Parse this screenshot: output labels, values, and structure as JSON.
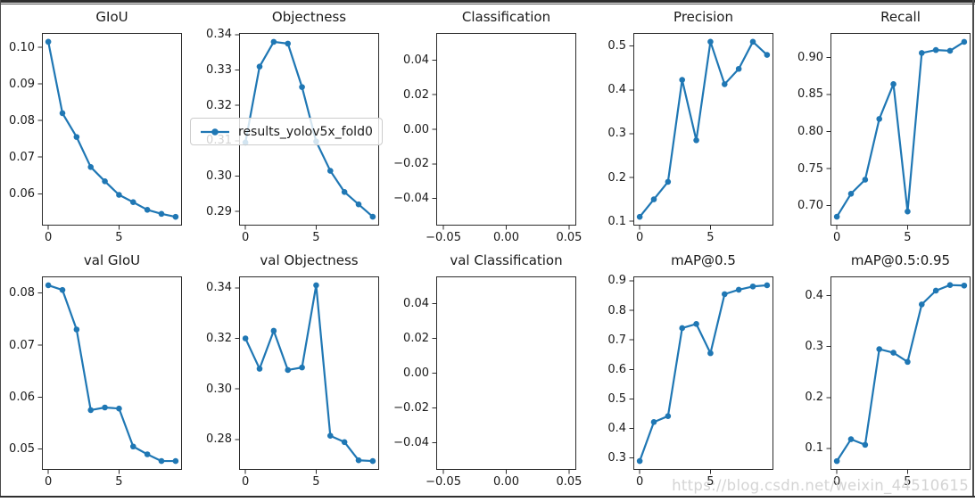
{
  "figure": {
    "background": "#ffffff",
    "rows": 2,
    "cols": 5
  },
  "style": {
    "line_color": "#1f77b4",
    "spine_color": "#2b2b2b",
    "tick_color": "#2b2b2b",
    "text_color": "#1a1a1a",
    "frame_color": "#2f2f2f"
  },
  "legend": {
    "label": "results_yolov5x_fold0",
    "line_color": "#1f77b4"
  },
  "watermark": {
    "text": "https://blog.csdn.net/weixin_44510615",
    "color": "#d4d4d4"
  },
  "chart_data": [
    {
      "type": "line",
      "title": "GIoU",
      "x": [
        0,
        1,
        2,
        3,
        4,
        5,
        6,
        7,
        8,
        9
      ],
      "values": [
        0.1015,
        0.082,
        0.0755,
        0.0673,
        0.0634,
        0.0597,
        0.0577,
        0.0556,
        0.0545,
        0.0537
      ],
      "xlim": [
        -0.45,
        9.45
      ],
      "ylim": [
        0.0513,
        0.1039
      ],
      "yticks": [
        0.06,
        0.07,
        0.08,
        0.09,
        0.1
      ],
      "ytick_labels": [
        "0.06",
        "0.07",
        "0.08",
        "0.09",
        "0.10"
      ],
      "xticks": [
        0,
        5
      ],
      "xtick_labels": [
        "0",
        "5"
      ],
      "grid": false,
      "legend_position": "overlapping-left-center"
    },
    {
      "type": "line",
      "title": "Objectness",
      "x": [
        0,
        1,
        2,
        3,
        4,
        5,
        6,
        7,
        8,
        9
      ],
      "values": [
        0.3095,
        0.331,
        0.338,
        0.3375,
        0.3252,
        0.3098,
        0.3015,
        0.2955,
        0.292,
        0.2885
      ],
      "xlim": [
        -0.45,
        9.45
      ],
      "ylim": [
        0.286,
        0.3405
      ],
      "yticks": [
        0.29,
        0.3,
        0.31,
        0.32,
        0.33,
        0.34
      ],
      "ytick_labels": [
        "0.29",
        "0.30",
        "0.31",
        "0.32",
        "0.33",
        "0.34"
      ],
      "xticks": [
        0,
        5
      ],
      "xtick_labels": [
        "0",
        "5"
      ],
      "grid": false
    },
    {
      "type": "line",
      "title": "Classification",
      "x": [],
      "values": [],
      "xlim": [
        -0.0557,
        0.0557
      ],
      "ylim": [
        -0.0557,
        0.0557
      ],
      "yticks": [
        0.04,
        0.02,
        0.0,
        -0.02,
        -0.04
      ],
      "ytick_labels": [
        "0.04",
        "0.02",
        "0.00",
        "−0.02",
        "−0.04"
      ],
      "xticks": [
        -0.05,
        0.0,
        0.05
      ],
      "xtick_labels": [
        "−0.05",
        "0.00",
        "0.05"
      ],
      "grid": false
    },
    {
      "type": "line",
      "title": "Precision",
      "x": [
        0,
        1,
        2,
        3,
        4,
        5,
        6,
        7,
        8,
        9
      ],
      "values": [
        0.11,
        0.15,
        0.19,
        0.423,
        0.285,
        0.51,
        0.413,
        0.448,
        0.51,
        0.48
      ],
      "xlim": [
        -0.45,
        9.45
      ],
      "ylim": [
        0.09,
        0.53
      ],
      "yticks": [
        0.1,
        0.2,
        0.3,
        0.4,
        0.5
      ],
      "ytick_labels": [
        "0.1",
        "0.2",
        "0.3",
        "0.4",
        "0.5"
      ],
      "xticks": [
        0,
        5
      ],
      "xtick_labels": [
        "0",
        "5"
      ],
      "grid": false
    },
    {
      "type": "line",
      "title": "Recall",
      "x": [
        0,
        1,
        2,
        3,
        4,
        5,
        6,
        7,
        8,
        9
      ],
      "values": [
        0.685,
        0.716,
        0.735,
        0.817,
        0.864,
        0.692,
        0.906,
        0.91,
        0.909,
        0.921
      ],
      "xlim": [
        -0.45,
        9.45
      ],
      "ylim": [
        0.673,
        0.933
      ],
      "yticks": [
        0.7,
        0.75,
        0.8,
        0.85,
        0.9
      ],
      "ytick_labels": [
        "0.70",
        "0.75",
        "0.80",
        "0.85",
        "0.90"
      ],
      "xticks": [
        0,
        5
      ],
      "xtick_labels": [
        "0",
        "5"
      ],
      "grid": false
    },
    {
      "type": "line",
      "title": "val GIoU",
      "x": [
        0,
        1,
        2,
        3,
        4,
        5,
        6,
        7,
        8,
        9
      ],
      "values": [
        0.0815,
        0.0806,
        0.073,
        0.0575,
        0.058,
        0.0578,
        0.0505,
        0.049,
        0.0477,
        0.0477
      ],
      "xlim": [
        -0.45,
        9.45
      ],
      "ylim": [
        0.046,
        0.0832
      ],
      "yticks": [
        0.05,
        0.06,
        0.07,
        0.08
      ],
      "ytick_labels": [
        "0.05",
        "0.06",
        "0.07",
        "0.08"
      ],
      "xticks": [
        0,
        5
      ],
      "xtick_labels": [
        "0",
        "5"
      ],
      "grid": false
    },
    {
      "type": "line",
      "title": "val Objectness",
      "x": [
        0,
        1,
        2,
        3,
        4,
        5,
        6,
        7,
        8,
        9
      ],
      "values": [
        0.32,
        0.308,
        0.323,
        0.3075,
        0.3085,
        0.341,
        0.2815,
        0.279,
        0.2718,
        0.2715
      ],
      "xlim": [
        -0.45,
        9.45
      ],
      "ylim": [
        0.268,
        0.3445
      ],
      "yticks": [
        0.28,
        0.3,
        0.32,
        0.34
      ],
      "ytick_labels": [
        "0.28",
        "0.30",
        "0.32",
        "0.34"
      ],
      "xticks": [
        0,
        5
      ],
      "xtick_labels": [
        "0",
        "5"
      ],
      "grid": false
    },
    {
      "type": "line",
      "title": "val Classification",
      "x": [],
      "values": [],
      "xlim": [
        -0.0557,
        0.0557
      ],
      "ylim": [
        -0.0557,
        0.0557
      ],
      "yticks": [
        0.04,
        0.02,
        0.0,
        -0.02,
        -0.04
      ],
      "ytick_labels": [
        "0.04",
        "0.02",
        "0.00",
        "−0.02",
        "−0.04"
      ],
      "xticks": [
        -0.05,
        0.0,
        0.05
      ],
      "xtick_labels": [
        "−0.05",
        "0.00",
        "0.05"
      ],
      "grid": false
    },
    {
      "type": "line",
      "title": "mAP@0.5",
      "x": [
        0,
        1,
        2,
        3,
        4,
        5,
        6,
        7,
        8,
        9
      ],
      "values": [
        0.29,
        0.422,
        0.442,
        0.74,
        0.754,
        0.655,
        0.855,
        0.87,
        0.881,
        0.885
      ],
      "xlim": [
        -0.45,
        9.45
      ],
      "ylim": [
        0.26,
        0.915
      ],
      "yticks": [
        0.3,
        0.4,
        0.5,
        0.6,
        0.7,
        0.8,
        0.9
      ],
      "ytick_labels": [
        "0.3",
        "0.4",
        "0.5",
        "0.6",
        "0.7",
        "0.8",
        "0.9"
      ],
      "xticks": [
        0,
        5
      ],
      "xtick_labels": [
        "0",
        "5"
      ],
      "grid": false
    },
    {
      "type": "line",
      "title": "mAP@0.5:0.95",
      "x": [
        0,
        1,
        2,
        3,
        4,
        5,
        6,
        7,
        8,
        9
      ],
      "values": [
        0.075,
        0.118,
        0.107,
        0.295,
        0.288,
        0.27,
        0.383,
        0.41,
        0.421,
        0.42
      ],
      "xlim": [
        -0.45,
        9.45
      ],
      "ylim": [
        0.0577,
        0.438
      ],
      "yticks": [
        0.1,
        0.2,
        0.3,
        0.4
      ],
      "ytick_labels": [
        "0.1",
        "0.2",
        "0.3",
        "0.4"
      ],
      "xticks": [
        0,
        5
      ],
      "xtick_labels": [
        "0",
        "5"
      ],
      "grid": false
    }
  ]
}
